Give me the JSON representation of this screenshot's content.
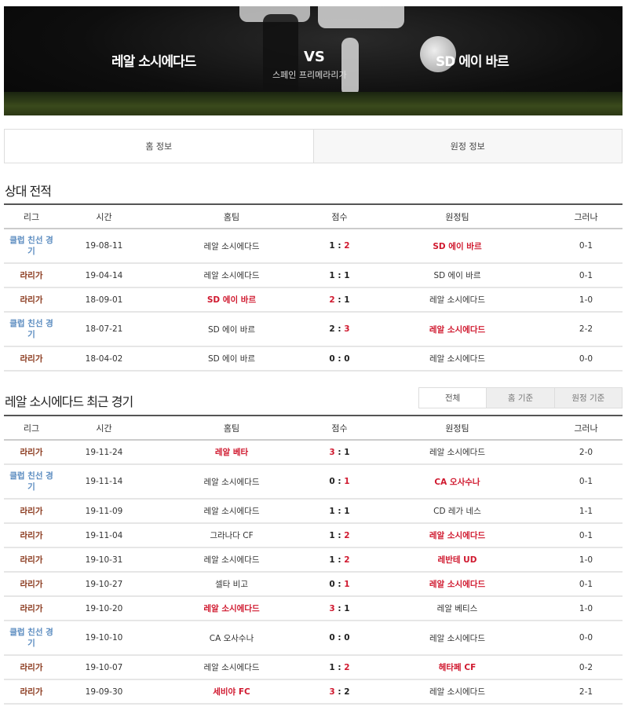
{
  "banner": {
    "home_team": "레알 소시에다드",
    "vs": "VS",
    "league": "스페인 프리메라리가",
    "away_team": "SD 에이 바르"
  },
  "tabs": [
    {
      "label": "홈 정보",
      "active": true
    },
    {
      "label": "원정 정보",
      "active": false
    }
  ],
  "colors": {
    "win": "#d0192f",
    "laliga": "#8b3a1e",
    "friendly": "#5b8cc0"
  },
  "h2h": {
    "title": "상대 전적",
    "columns": [
      "리그",
      "시간",
      "홈팀",
      "점수",
      "원정팀",
      "그러나"
    ],
    "rows": [
      {
        "league": "클럽 친선 경기",
        "type": "friendly",
        "date": "19-08-11",
        "home": "레알 소시에다드",
        "hs": "1",
        "as": "2",
        "away": "SD 에이 바르",
        "ht": "0-1",
        "winner": "away"
      },
      {
        "league": "라리가",
        "type": "laliga",
        "date": "19-04-14",
        "home": "레알 소시에다드",
        "hs": "1",
        "as": "1",
        "away": "SD 에이 바르",
        "ht": "0-1",
        "winner": "draw"
      },
      {
        "league": "라리가",
        "type": "laliga",
        "date": "18-09-01",
        "home": "SD 에이 바르",
        "hs": "2",
        "as": "1",
        "away": "레알 소시에다드",
        "ht": "1-0",
        "winner": "home"
      },
      {
        "league": "클럽 친선 경기",
        "type": "friendly",
        "date": "18-07-21",
        "home": "SD 에이 바르",
        "hs": "2",
        "as": "3",
        "away": "레알 소시에다드",
        "ht": "2-2",
        "winner": "away"
      },
      {
        "league": "라리가",
        "type": "laliga",
        "date": "18-04-02",
        "home": "SD 에이 바르",
        "hs": "0",
        "as": "0",
        "away": "레알 소시에다드",
        "ht": "0-0",
        "winner": "draw"
      }
    ]
  },
  "recent": {
    "title": "레알 소시에다드 최근 경기",
    "filters": [
      {
        "label": "전체",
        "active": true
      },
      {
        "label": "홈 기준",
        "active": false
      },
      {
        "label": "원정 기준",
        "active": false
      }
    ],
    "columns": [
      "리그",
      "시간",
      "홈팀",
      "점수",
      "원정팀",
      "그러나"
    ],
    "rows": [
      {
        "league": "라리가",
        "type": "laliga",
        "date": "19-11-24",
        "home": "레알 베타",
        "hs": "3",
        "as": "1",
        "away": "레알 소시에다드",
        "ht": "2-0",
        "winner": "home"
      },
      {
        "league": "클럽 친선 경기",
        "type": "friendly",
        "date": "19-11-14",
        "home": "레알 소시에다드",
        "hs": "0",
        "as": "1",
        "away": "CA 오사수나",
        "ht": "0-1",
        "winner": "away"
      },
      {
        "league": "라리가",
        "type": "laliga",
        "date": "19-11-09",
        "home": "레알 소시에다드",
        "hs": "1",
        "as": "1",
        "away": "CD 레가 네스",
        "ht": "1-1",
        "winner": "draw"
      },
      {
        "league": "라리가",
        "type": "laliga",
        "date": "19-11-04",
        "home": "그라나다 CF",
        "hs": "1",
        "as": "2",
        "away": "레알 소시에다드",
        "ht": "0-1",
        "winner": "away"
      },
      {
        "league": "라리가",
        "type": "laliga",
        "date": "19-10-31",
        "home": "레알 소시에다드",
        "hs": "1",
        "as": "2",
        "away": "레반테 UD",
        "ht": "1-0",
        "winner": "away"
      },
      {
        "league": "라리가",
        "type": "laliga",
        "date": "19-10-27",
        "home": "셀타 비고",
        "hs": "0",
        "as": "1",
        "away": "레알 소시에다드",
        "ht": "0-1",
        "winner": "away"
      },
      {
        "league": "라리가",
        "type": "laliga",
        "date": "19-10-20",
        "home": "레알 소시에다드",
        "hs": "3",
        "as": "1",
        "away": "레알 베티스",
        "ht": "1-0",
        "winner": "home"
      },
      {
        "league": "클럽 친선 경기",
        "type": "friendly",
        "date": "19-10-10",
        "home": "CA 오사수나",
        "hs": "0",
        "as": "0",
        "away": "레알 소시에다드",
        "ht": "0-0",
        "winner": "draw"
      },
      {
        "league": "라리가",
        "type": "laliga",
        "date": "19-10-07",
        "home": "레알 소시에다드",
        "hs": "1",
        "as": "2",
        "away": "헤타페 CF",
        "ht": "0-2",
        "winner": "away"
      },
      {
        "league": "라리가",
        "type": "laliga",
        "date": "19-09-30",
        "home": "세비야 FC",
        "hs": "3",
        "as": "2",
        "away": "레알 소시에다드",
        "ht": "2-1",
        "winner": "home"
      }
    ]
  }
}
